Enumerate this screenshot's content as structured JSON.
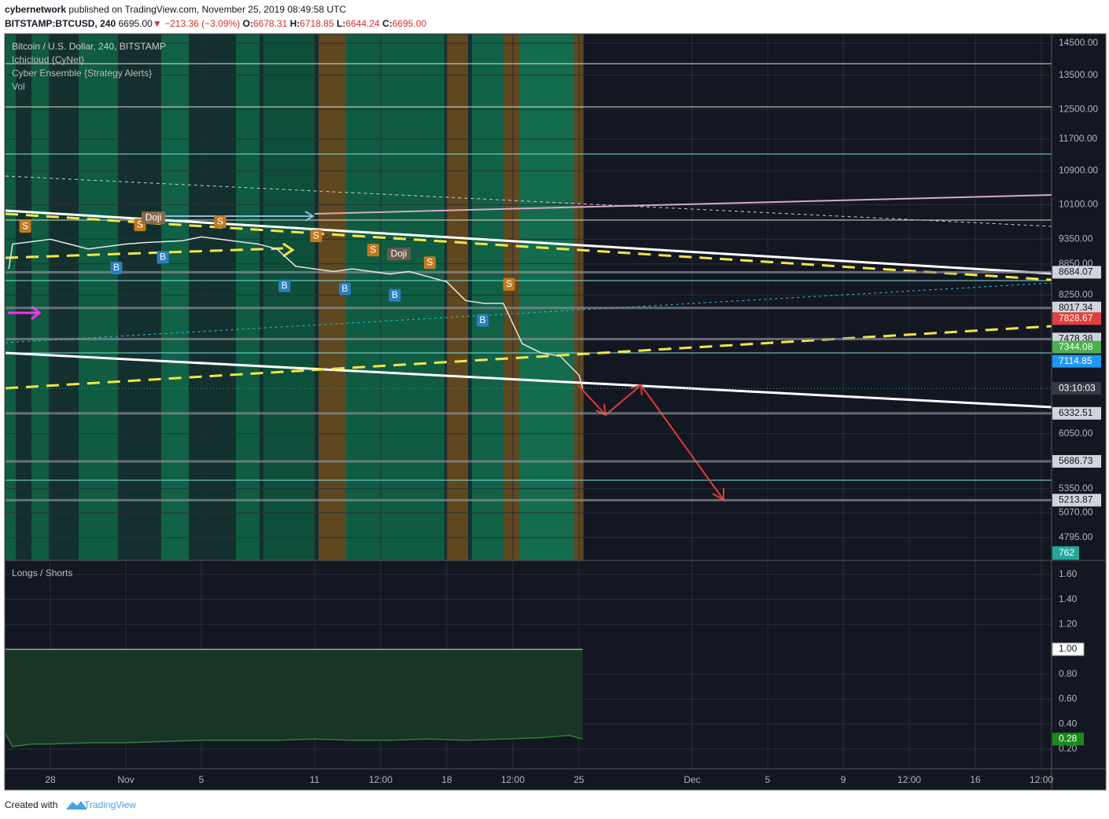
{
  "header": {
    "author": "cybernetwork",
    "published": "published on TradingView.com, November 25, 2019 08:49:58 UTC",
    "symbol": "BITSTAMP:BTCUSD, 240",
    "last": "6695.00",
    "arrow": "▼",
    "change": "−213.36 (−3.09%)",
    "ohlc": [
      {
        "k": "O:",
        "v": "6678.31"
      },
      {
        "k": "H:",
        "v": "6718.85"
      },
      {
        "k": "L:",
        "v": "6644.24"
      },
      {
        "k": "C:",
        "v": "6695.00"
      }
    ]
  },
  "footer": {
    "created": "Created with",
    "brand": "TradingView"
  },
  "chart_data": [
    {
      "type": "line",
      "title": "Bitcoin / U.S. Dollar, 240, BITSTAMP",
      "indicators": [
        "Ichicloud {CyNet}",
        "Cyber Ensemble {Strategy Alerts}",
        "Vol"
      ],
      "log_scale": true,
      "grid": true,
      "xlim": [
        -2.375,
        53.04
      ],
      "ylim": [
        4556,
        14784
      ],
      "yticks": [
        {
          "value": 14500,
          "label": "14500.00"
        },
        {
          "value": 13500,
          "label": "13500.00"
        },
        {
          "value": 12500,
          "label": "12500.00"
        },
        {
          "value": 11700,
          "label": "11700.00"
        },
        {
          "value": 10900,
          "label": "10900.00"
        },
        {
          "value": 10100,
          "label": "10100.00"
        },
        {
          "value": 9350,
          "label": "9350.00"
        },
        {
          "value": 8850,
          "label": "8850.00"
        },
        {
          "value": 8250,
          "label": "8250.00"
        },
        {
          "value": 6050,
          "label": "6050.00"
        },
        {
          "value": 5350,
          "label": "5350.00"
        },
        {
          "value": 5070,
          "label": "5070.00"
        },
        {
          "value": 4795,
          "label": "4795.00"
        }
      ],
      "series": [
        {
          "name": "BTCUSD",
          "color": "#e6e6e6",
          "x": [
            -2.2,
            -2,
            -1,
            0,
            1,
            2,
            3,
            4,
            5,
            6,
            7,
            8,
            9,
            10,
            11,
            12,
            13,
            14,
            15,
            16,
            17,
            18,
            19,
            20,
            21,
            22,
            23,
            24,
            25,
            26,
            27,
            28,
            28.2
          ],
          "values": [
            8750,
            9250,
            9300,
            9350,
            9250,
            9150,
            9200,
            9250,
            9280,
            9300,
            9320,
            9400,
            9350,
            9300,
            9250,
            9150,
            8800,
            8750,
            8700,
            8750,
            8700,
            8650,
            8700,
            8600,
            8500,
            8150,
            8100,
            8100,
            7400,
            7250,
            7200,
            6900,
            6695
          ]
        }
      ],
      "price_labels": [
        {
          "value": 8684.07,
          "color": "#d1d4dc",
          "text_color": "#131722"
        },
        {
          "value": 8017.34,
          "color": "#d1d4dc",
          "text_color": "#131722"
        },
        {
          "value": 7828.67,
          "color": "#e0403c",
          "text_color": "#ffffff"
        },
        {
          "value": 7478.38,
          "color": "#d1d4dc",
          "text_color": "#131722"
        },
        {
          "value": 7344.08,
          "color": "#4caf50",
          "text_color": "#ffffff"
        },
        {
          "value": 7114.85,
          "color": "#2196f3",
          "text_color": "#ffffff"
        },
        {
          "value": 6332.51,
          "color": "#d1d4dc",
          "text_color": "#131722"
        },
        {
          "value": 5686.73,
          "color": "#d1d4dc",
          "text_color": "#131722"
        },
        {
          "value": 5213.87,
          "color": "#d1d4dc",
          "text_color": "#131722"
        }
      ],
      "countdown": "03:10:03",
      "volume_last": 762,
      "annotations": [
        {
          "text": "B",
          "x": 3.5,
          "y": 8766,
          "color": "#2a7fc1"
        },
        {
          "text": "B",
          "x": 5.96,
          "y": 8977,
          "color": "#2a7fc1"
        },
        {
          "text": "B",
          "x": 12.4,
          "y": 8424,
          "color": "#2a7fc1"
        },
        {
          "text": "B",
          "x": 15.6,
          "y": 8365,
          "color": "#2a7fc1"
        },
        {
          "text": "B",
          "x": 18.25,
          "y": 8248,
          "color": "#2a7fc1"
        },
        {
          "text": "B",
          "x": 22.9,
          "y": 7797,
          "color": "#2a7fc1"
        },
        {
          "text": "S",
          "x": -1.33,
          "y": 9621,
          "color": "#c27a1f"
        },
        {
          "text": "S",
          "x": 4.75,
          "y": 9655,
          "color": "#c27a1f"
        },
        {
          "text": "S",
          "x": 9,
          "y": 9724,
          "color": "#c27a1f"
        },
        {
          "text": "S",
          "x": 14.08,
          "y": 9420,
          "color": "#c27a1f"
        },
        {
          "text": "S",
          "x": 17.1,
          "y": 9126,
          "color": "#c27a1f"
        },
        {
          "text": "S",
          "x": 20.1,
          "y": 8872,
          "color": "#c27a1f"
        },
        {
          "text": "S",
          "x": 24.3,
          "y": 8452,
          "color": "#c27a1f"
        },
        {
          "text": "Doji",
          "x": 5.46,
          "y": 9810,
          "color": "#8a6a4a"
        },
        {
          "text": "Doji",
          "x": 18.46,
          "y": 9046,
          "color": "#6a5a4a"
        }
      ]
    },
    {
      "type": "area",
      "title": "Longs / Shorts",
      "grid": true,
      "xlim": [
        -2.375,
        53.04
      ],
      "ylim": [
        0.042,
        1.713
      ],
      "xticks": [
        {
          "value": 0,
          "label": "28"
        },
        {
          "value": 4,
          "label": "Nov"
        },
        {
          "value": 8,
          "label": "5"
        },
        {
          "value": 14,
          "label": "11"
        },
        {
          "value": 17.5,
          "label": "12:00"
        },
        {
          "value": 21,
          "label": "18"
        },
        {
          "value": 24.5,
          "label": "12:00"
        },
        {
          "value": 28,
          "label": "25"
        },
        {
          "value": 34,
          "label": "Dec"
        },
        {
          "value": 38,
          "label": "5"
        },
        {
          "value": 42,
          "label": "9"
        },
        {
          "value": 45.5,
          "label": "12:00"
        },
        {
          "value": 49,
          "label": "16"
        },
        {
          "value": 52.5,
          "label": "12:00"
        }
      ],
      "yticks": [
        {
          "value": 1.6,
          "label": "1.60"
        },
        {
          "value": 1.4,
          "label": "1.40"
        },
        {
          "value": 1.2,
          "label": "1.20"
        },
        {
          "value": 0.8,
          "label": "0.80"
        },
        {
          "value": 0.6,
          "label": "0.60"
        },
        {
          "value": 0.4,
          "label": "0.40"
        },
        {
          "value": 0.2,
          "label": "0.20"
        }
      ],
      "hline": {
        "value": 1,
        "label": "1.00"
      },
      "series": [
        {
          "name": "Longs / Shorts",
          "color": "#2e7d32",
          "x": [
            -2.375,
            -2,
            -1,
            0,
            2,
            4,
            6,
            8,
            10,
            12,
            14,
            16,
            18,
            20,
            22,
            24,
            26,
            27.5,
            28.2
          ],
          "values": [
            0.32,
            0.22,
            0.24,
            0.24,
            0.25,
            0.25,
            0.26,
            0.27,
            0.27,
            0.27,
            0.28,
            0.27,
            0.27,
            0.28,
            0.27,
            0.28,
            0.29,
            0.31,
            0.28
          ]
        }
      ]
    }
  ]
}
